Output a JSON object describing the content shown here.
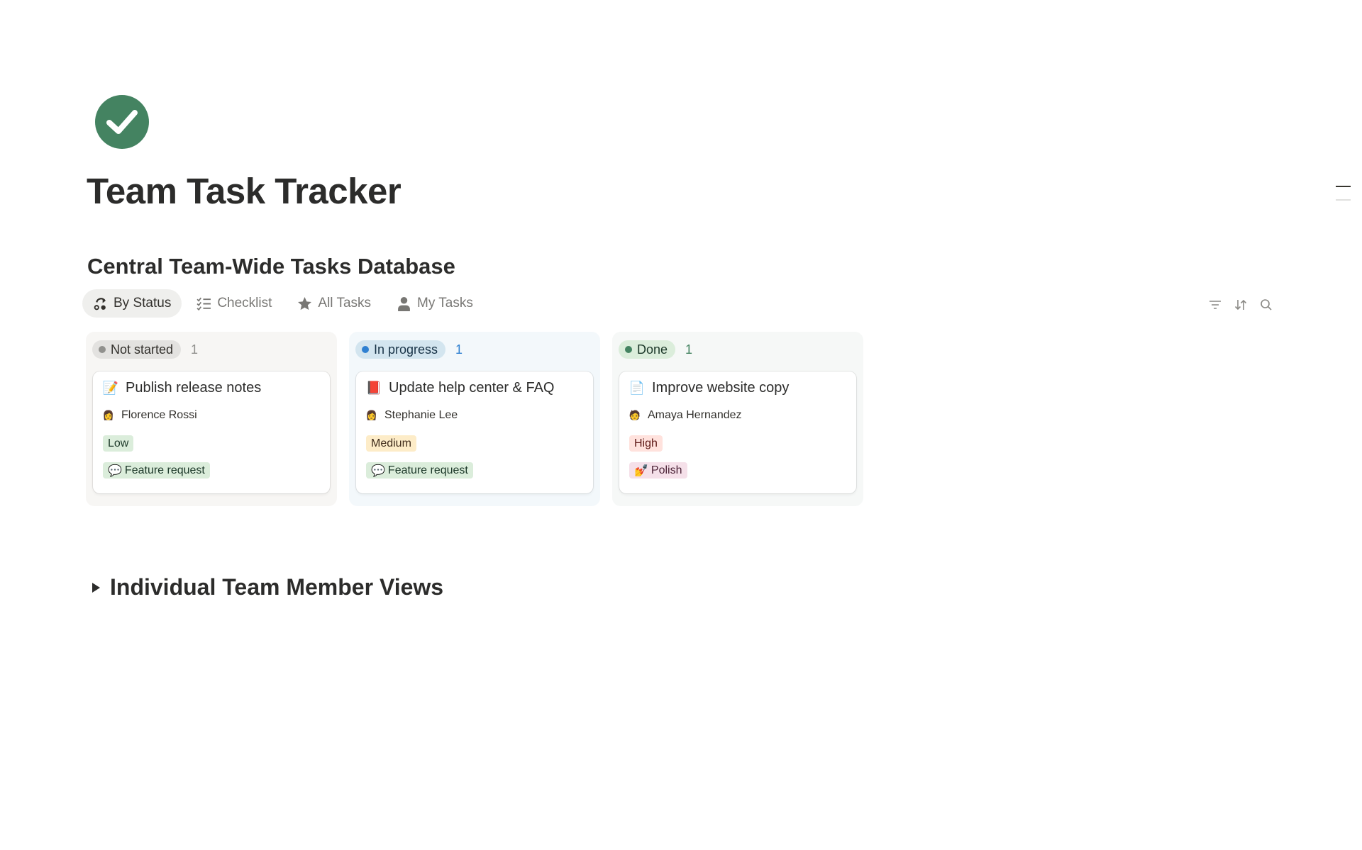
{
  "page": {
    "title": "Team Task Tracker",
    "icon": "check-circle-icon",
    "icon_color": "#448361"
  },
  "database": {
    "title": "Central Team-Wide Tasks Database",
    "tabs": [
      {
        "label": "By Status",
        "icon": "board-icon",
        "active": true
      },
      {
        "label": "Checklist",
        "icon": "checklist-icon"
      },
      {
        "label": "All Tasks",
        "icon": "star-icon"
      },
      {
        "label": "My Tasks",
        "icon": "person-icon"
      }
    ],
    "toolbar": [
      "filter-icon",
      "sort-icon",
      "search-icon"
    ],
    "groups": [
      {
        "label": "Not started",
        "count": "1",
        "color": "#91918e",
        "bg": "#f7f6f4",
        "card": {
          "title": "Publish release notes",
          "icon": "📝",
          "assignee": "Florence Rossi",
          "priority": "Low",
          "type": "Feature request",
          "type_icon": "💬"
        }
      },
      {
        "label": "In progress",
        "count": "1",
        "color": "#2f80d1",
        "bg": "#f3f8fb",
        "card": {
          "title": "Update help center & FAQ",
          "icon": "📕",
          "assignee": "Stephanie Lee",
          "priority": "Medium",
          "type": "Feature request",
          "type_icon": "💬"
        }
      },
      {
        "label": "Done",
        "count": "1",
        "color": "#448361",
        "bg": "#f6f8f7",
        "card": {
          "title": "Improve website copy",
          "icon": "📄",
          "assignee": "Amaya Hernandez",
          "priority": "High",
          "type": "Polish",
          "type_icon": "💅"
        }
      }
    ]
  },
  "toggle": {
    "label": "Individual Team Member Views",
    "expanded": false
  }
}
